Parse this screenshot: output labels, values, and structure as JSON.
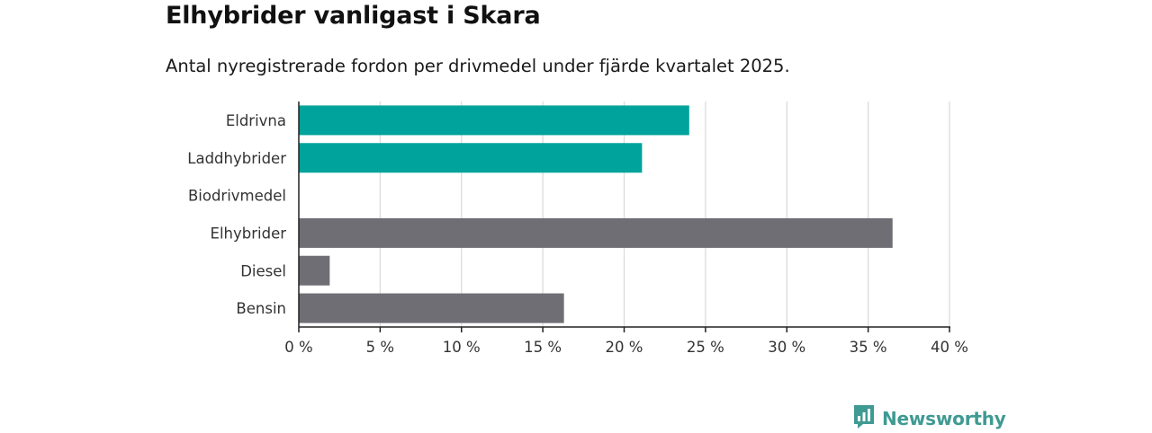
{
  "header": {
    "title": "Elhybrider vanligast i Skara",
    "subtitle": "Antal nyregistrerade fordon per drivmedel under fjärde kvartalet 2025."
  },
  "chart_data": {
    "type": "bar",
    "orientation": "horizontal",
    "title": "Elhybrider vanligast i Skara",
    "subtitle": "Antal nyregistrerade fordon per drivmedel under fjärde kvartalet 2025.",
    "categories": [
      "Eldrivna",
      "Laddhybrider",
      "Biodrivmedel",
      "Elhybrider",
      "Diesel",
      "Bensin"
    ],
    "values": [
      24.0,
      21.1,
      0,
      36.5,
      1.9,
      16.3
    ],
    "unit": "%",
    "bar_colors": [
      "#00a39b",
      "#00a39b",
      "#6f6e75",
      "#6f6e75",
      "#6f6e75",
      "#6f6e75"
    ],
    "xlim": [
      0,
      40
    ],
    "xticks": [
      0,
      5,
      10,
      15,
      20,
      25,
      30,
      35,
      40
    ],
    "xtick_labels": [
      "0 %",
      "5 %",
      "10 %",
      "15 %",
      "20 %",
      "25 %",
      "30 %",
      "35 %",
      "40 %"
    ],
    "xlabel": "",
    "ylabel": "",
    "grid": true
  },
  "brand": {
    "name": "Newsworthy",
    "icon": "newsworthy-logo-icon",
    "color": "#3f9a93"
  },
  "colors": {
    "accent": "#00a39b",
    "neutral": "#6f6e75",
    "grid": "#d9d9d9",
    "axis": "#222222"
  }
}
